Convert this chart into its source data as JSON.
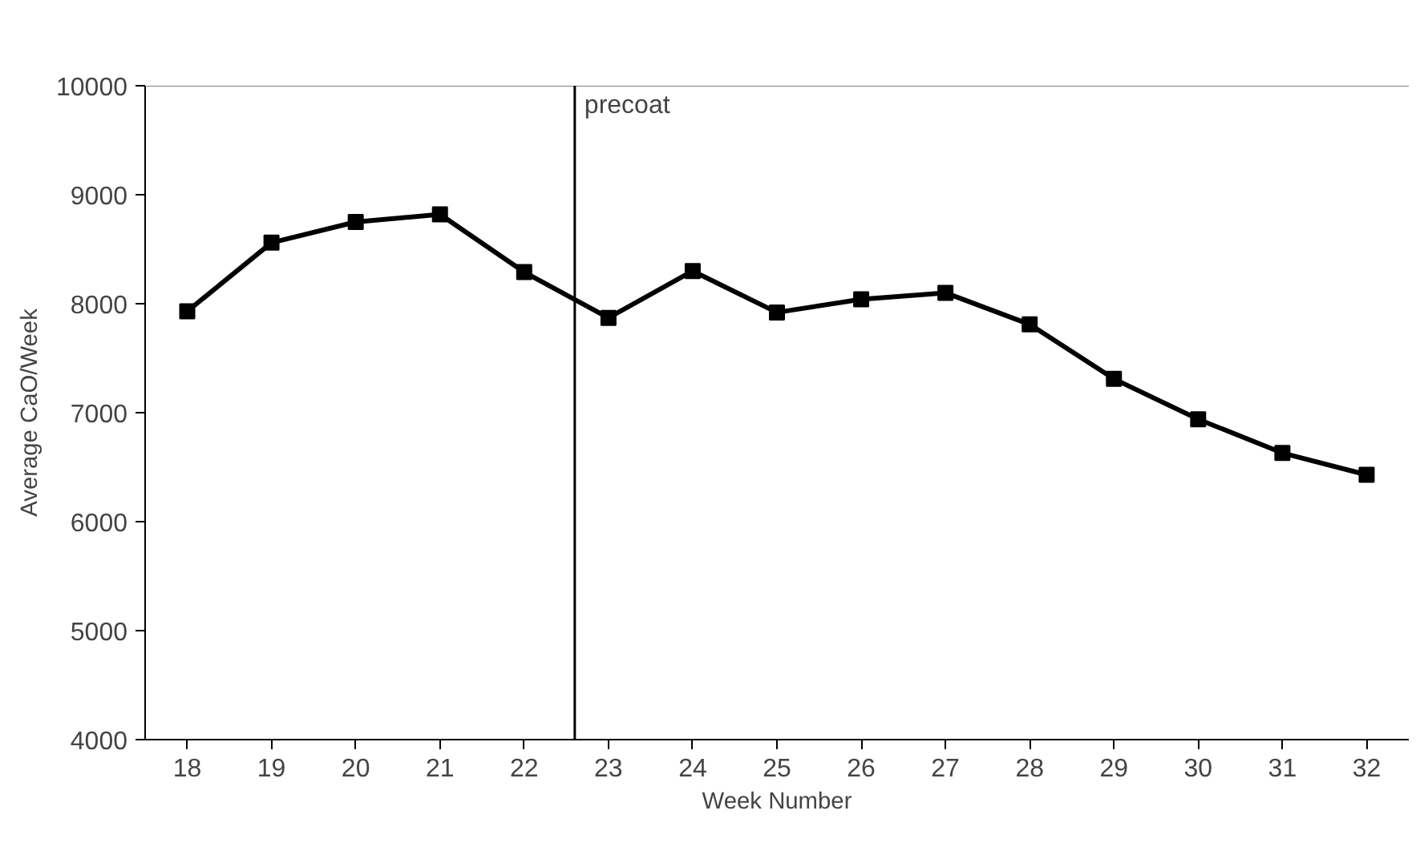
{
  "chart_data": {
    "type": "line",
    "xlabel": "Week Number",
    "ylabel": "Average CaO/Week",
    "x": [
      18,
      19,
      20,
      21,
      22,
      23,
      24,
      25,
      26,
      27,
      28,
      29,
      30,
      31,
      32
    ],
    "series": [
      {
        "color": "#000000",
        "values": [
          7930,
          8560,
          8750,
          8820,
          8290,
          7870,
          8300,
          7920,
          8040,
          8100,
          7810,
          7310,
          6940,
          6630,
          6430
        ]
      }
    ],
    "xlim": [
      17.5,
      32.5
    ],
    "xticks": [
      18,
      19,
      20,
      21,
      22,
      23,
      24,
      25,
      26,
      27,
      28,
      29,
      30,
      31,
      32
    ],
    "ylim": [
      4000,
      10000
    ],
    "yticks": [
      4000,
      5000,
      6000,
      7000,
      8000,
      9000,
      10000
    ],
    "ref_lines": [
      {
        "axis": "x",
        "value": 22.6,
        "label": "precoat",
        "color": "#000000"
      }
    ],
    "marker": "square",
    "line_style": "solid",
    "grid": false
  }
}
